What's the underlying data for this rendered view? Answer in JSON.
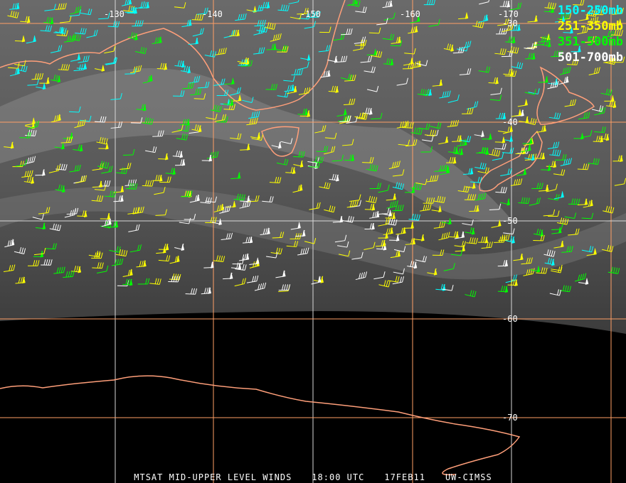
{
  "footer": {
    "title": "MTSAT MID-UPPER LEVEL WINDS",
    "time": "18:00 UTC",
    "date": "17FEB11",
    "credit": "UW-CIMSS"
  },
  "legend": [
    {
      "label": "150-250mb",
      "color": "#00ffff"
    },
    {
      "label": "251-350mb",
      "color": "#ffff00"
    },
    {
      "label": "351-500mb",
      "color": "#00ff00"
    },
    {
      "label": "501-700mb",
      "color": "#ffffff"
    }
  ],
  "longitude_labels": [
    "-130",
    "-140",
    "-150",
    "-160",
    "-170"
  ],
  "latitude_labels": [
    "-30",
    "-40",
    "-50",
    "-60",
    "-70"
  ],
  "colors": {
    "coastline": "#ff9f7a",
    "grid_orange": "#ff9f66",
    "grid_white": "#d8d8d8",
    "imagery": "#5a5a5a"
  }
}
